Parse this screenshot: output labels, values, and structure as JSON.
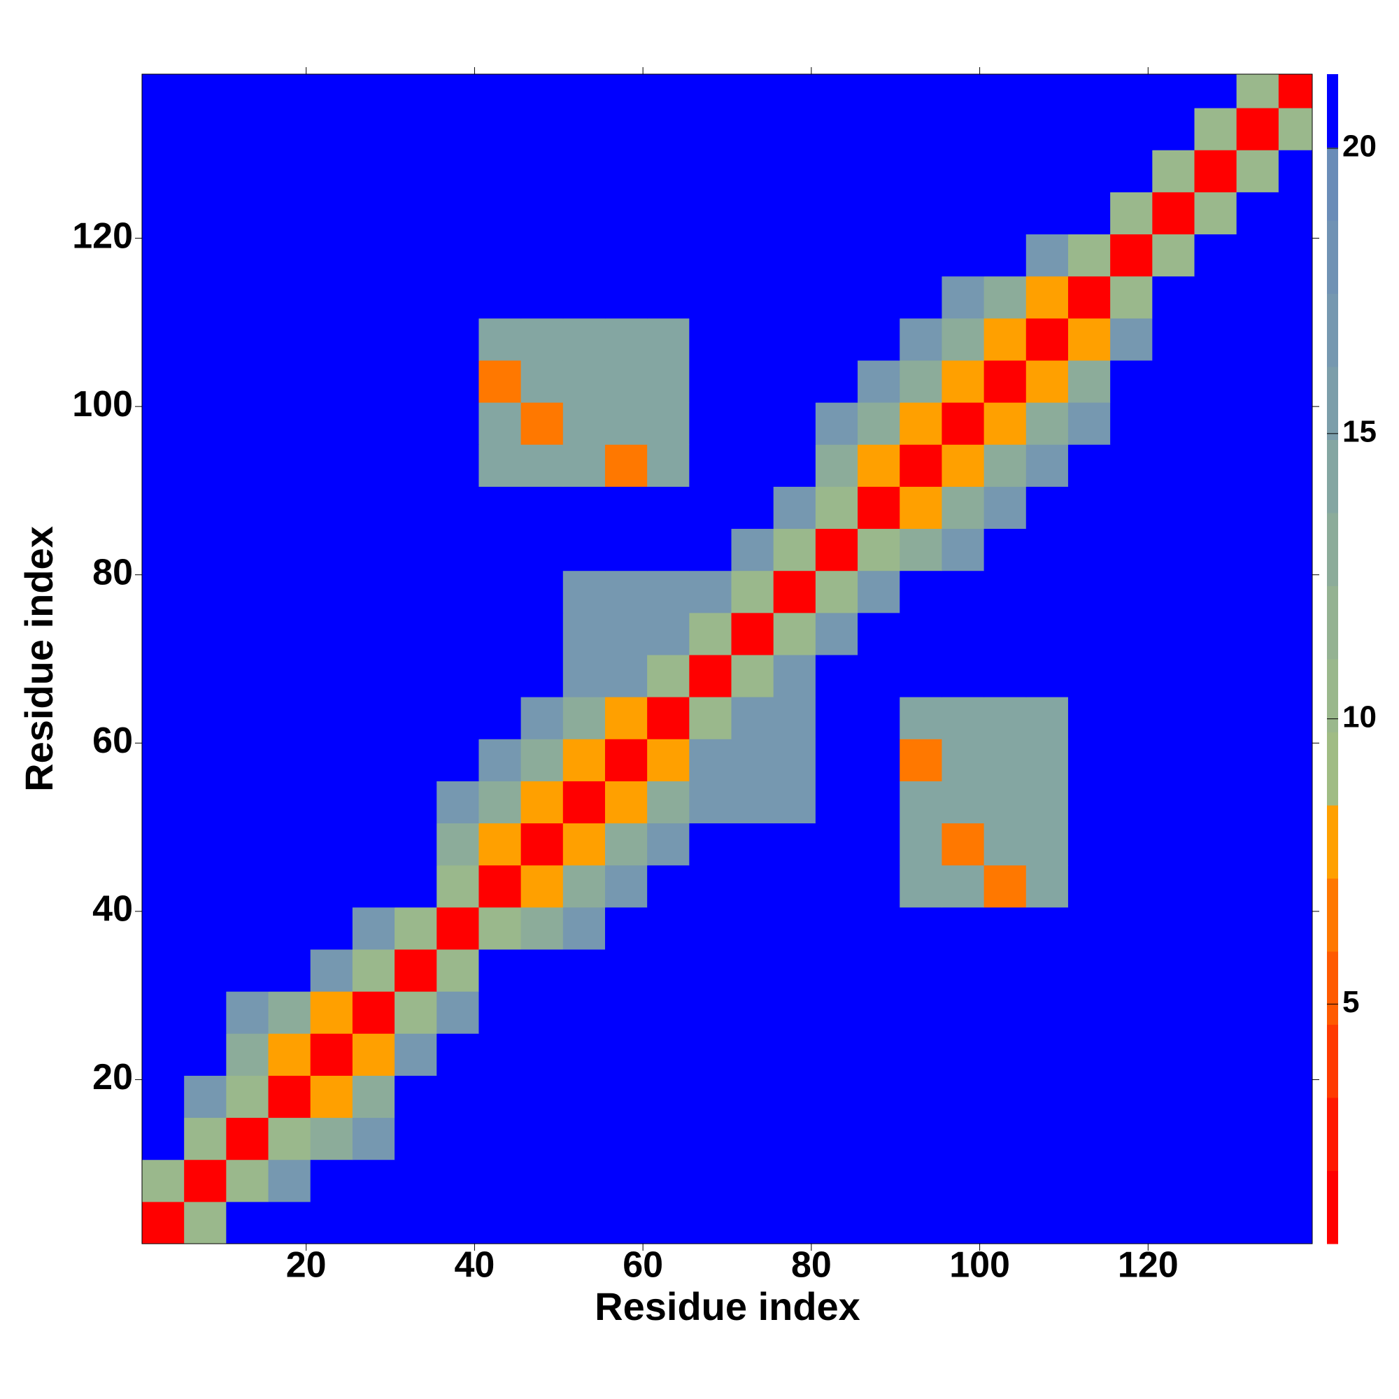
{
  "chart_data": {
    "type": "heatmap",
    "xlabel": "Residue index",
    "ylabel": "Residue index",
    "x": [
      3,
      8,
      13,
      18,
      23,
      28,
      33,
      38,
      43,
      48,
      53,
      58,
      63,
      68,
      73,
      78,
      83,
      88,
      93,
      98,
      103,
      108,
      113,
      118,
      123,
      128,
      133,
      138
    ],
    "y": [
      3,
      8,
      13,
      18,
      23,
      28,
      33,
      38,
      43,
      48,
      53,
      58,
      63,
      68,
      73,
      78,
      83,
      88,
      93,
      98,
      103,
      108,
      113,
      118,
      123,
      128,
      133,
      138
    ],
    "xlim": [
      0.5,
      139.5
    ],
    "ylim": [
      0.5,
      139.5
    ],
    "xticks": [
      20,
      40,
      60,
      80,
      100,
      120
    ],
    "yticks": [
      20,
      40,
      60,
      80,
      100,
      120
    ],
    "clim": [
      0.8,
      21.3
    ],
    "cticks": [
      5,
      10,
      15,
      20
    ],
    "colors": [
      "#ff0000",
      "#ff1800",
      "#ff3a00",
      "#ff5a00",
      "#ff7800",
      "#ffa000",
      "#a0bc84",
      "#9ab88c",
      "#94b292",
      "#8cac9a",
      "#84a6a2",
      "#7c9eaa",
      "#7698b0",
      "#7092b4",
      "#6a8cb8",
      "#0000ff"
    ],
    "z": [
      [
        2,
        11,
        21,
        21,
        21,
        21,
        21,
        21,
        21,
        21,
        21,
        21,
        21,
        21,
        21,
        21,
        21,
        21,
        21,
        21,
        21,
        21,
        21,
        21,
        21,
        21,
        21,
        21
      ],
      [
        11,
        2,
        11,
        17,
        21,
        21,
        21,
        21,
        21,
        21,
        21,
        21,
        21,
        21,
        21,
        21,
        21,
        21,
        21,
        21,
        21,
        21,
        21,
        21,
        21,
        21,
        21,
        21
      ],
      [
        21,
        11,
        2,
        11,
        13,
        17,
        21,
        21,
        21,
        21,
        21,
        21,
        21,
        21,
        21,
        21,
        21,
        21,
        21,
        21,
        21,
        21,
        21,
        21,
        21,
        21,
        21,
        21
      ],
      [
        21,
        17,
        11,
        2,
        8,
        13,
        21,
        21,
        21,
        21,
        21,
        21,
        21,
        21,
        21,
        21,
        21,
        21,
        21,
        21,
        21,
        21,
        21,
        21,
        21,
        21,
        21,
        21
      ],
      [
        21,
        21,
        13,
        8,
        2,
        8,
        17,
        21,
        21,
        21,
        21,
        21,
        21,
        21,
        21,
        21,
        21,
        21,
        21,
        21,
        21,
        21,
        21,
        21,
        21,
        21,
        21,
        21
      ],
      [
        21,
        21,
        17,
        13,
        8,
        2,
        11,
        17,
        21,
        21,
        21,
        21,
        21,
        21,
        21,
        21,
        21,
        21,
        21,
        21,
        21,
        21,
        21,
        21,
        21,
        21,
        21,
        21
      ],
      [
        21,
        21,
        21,
        21,
        17,
        11,
        2,
        11,
        21,
        21,
        21,
        21,
        21,
        21,
        21,
        21,
        21,
        21,
        21,
        21,
        21,
        21,
        21,
        21,
        21,
        21,
        21,
        21
      ],
      [
        21,
        21,
        21,
        21,
        21,
        17,
        11,
        2,
        11,
        13,
        17,
        21,
        21,
        21,
        21,
        21,
        21,
        21,
        21,
        21,
        21,
        21,
        21,
        21,
        21,
        21,
        21,
        21
      ],
      [
        21,
        21,
        21,
        21,
        21,
        21,
        21,
        11,
        2,
        8,
        13,
        17,
        21,
        21,
        21,
        21,
        21,
        21,
        14,
        14,
        7,
        14,
        21,
        21,
        21,
        21,
        21,
        21
      ],
      [
        21,
        21,
        21,
        21,
        21,
        21,
        21,
        13,
        8,
        2,
        8,
        13,
        17,
        21,
        21,
        21,
        21,
        21,
        14,
        7,
        14,
        14,
        21,
        21,
        21,
        21,
        21,
        21
      ],
      [
        21,
        21,
        21,
        21,
        21,
        21,
        21,
        17,
        13,
        8,
        2,
        8,
        13,
        17,
        17,
        17,
        21,
        21,
        14,
        14,
        14,
        14,
        21,
        21,
        21,
        21,
        21,
        21
      ],
      [
        21,
        21,
        21,
        21,
        21,
        21,
        21,
        21,
        17,
        13,
        8,
        2,
        8,
        17,
        17,
        17,
        21,
        21,
        7,
        14,
        14,
        14,
        21,
        21,
        21,
        21,
        21,
        21
      ],
      [
        21,
        21,
        21,
        21,
        21,
        21,
        21,
        21,
        21,
        17,
        13,
        8,
        2,
        11,
        17,
        17,
        21,
        21,
        14,
        14,
        14,
        14,
        21,
        21,
        21,
        21,
        21,
        21
      ],
      [
        21,
        21,
        21,
        21,
        21,
        21,
        21,
        21,
        21,
        21,
        17,
        17,
        11,
        2,
        11,
        17,
        21,
        21,
        21,
        21,
        21,
        21,
        21,
        21,
        21,
        21,
        21,
        21
      ],
      [
        21,
        21,
        21,
        21,
        21,
        21,
        21,
        21,
        21,
        21,
        17,
        17,
        17,
        11,
        2,
        11,
        17,
        21,
        21,
        21,
        21,
        21,
        21,
        21,
        21,
        21,
        21,
        21
      ],
      [
        21,
        21,
        21,
        21,
        21,
        21,
        21,
        21,
        21,
        21,
        17,
        17,
        17,
        17,
        11,
        2,
        11,
        17,
        21,
        21,
        21,
        21,
        21,
        21,
        21,
        21,
        21,
        21
      ],
      [
        21,
        21,
        21,
        21,
        21,
        21,
        21,
        21,
        21,
        21,
        21,
        21,
        21,
        21,
        17,
        11,
        2,
        11,
        13,
        17,
        21,
        21,
        21,
        21,
        21,
        21,
        21,
        21
      ],
      [
        21,
        21,
        21,
        21,
        21,
        21,
        21,
        21,
        21,
        21,
        21,
        21,
        21,
        21,
        21,
        17,
        11,
        2,
        8,
        13,
        17,
        21,
        21,
        21,
        21,
        21,
        21,
        21
      ],
      [
        21,
        21,
        21,
        21,
        21,
        21,
        21,
        21,
        14,
        14,
        14,
        7,
        14,
        21,
        21,
        21,
        13,
        8,
        2,
        8,
        13,
        17,
        21,
        21,
        21,
        21,
        21,
        21
      ],
      [
        21,
        21,
        21,
        21,
        21,
        21,
        21,
        21,
        14,
        7,
        14,
        14,
        14,
        21,
        21,
        21,
        17,
        13,
        8,
        2,
        8,
        13,
        17,
        21,
        21,
        21,
        21,
        21
      ],
      [
        21,
        21,
        21,
        21,
        21,
        21,
        21,
        21,
        7,
        14,
        14,
        14,
        14,
        21,
        21,
        21,
        21,
        17,
        13,
        8,
        2,
        8,
        13,
        21,
        21,
        21,
        21,
        21
      ],
      [
        21,
        21,
        21,
        21,
        21,
        21,
        21,
        21,
        14,
        14,
        14,
        14,
        14,
        21,
        21,
        21,
        21,
        21,
        17,
        13,
        8,
        2,
        8,
        17,
        21,
        21,
        21,
        21
      ],
      [
        21,
        21,
        21,
        21,
        21,
        21,
        21,
        21,
        21,
        21,
        21,
        21,
        21,
        21,
        21,
        21,
        21,
        21,
        21,
        17,
        13,
        8,
        2,
        11,
        21,
        21,
        21,
        21
      ],
      [
        21,
        21,
        21,
        21,
        21,
        21,
        21,
        21,
        21,
        21,
        21,
        21,
        21,
        21,
        21,
        21,
        21,
        21,
        21,
        21,
        21,
        17,
        11,
        2,
        11,
        21,
        21,
        21
      ],
      [
        21,
        21,
        21,
        21,
        21,
        21,
        21,
        21,
        21,
        21,
        21,
        21,
        21,
        21,
        21,
        21,
        21,
        21,
        21,
        21,
        21,
        21,
        21,
        11,
        2,
        11,
        21,
        21
      ],
      [
        21,
        21,
        21,
        21,
        21,
        21,
        21,
        21,
        21,
        21,
        21,
        21,
        21,
        21,
        21,
        21,
        21,
        21,
        21,
        21,
        21,
        21,
        21,
        21,
        11,
        2,
        11,
        21
      ],
      [
        21,
        21,
        21,
        21,
        21,
        21,
        21,
        21,
        21,
        21,
        21,
        21,
        21,
        21,
        21,
        21,
        21,
        21,
        21,
        21,
        21,
        21,
        21,
        21,
        21,
        11,
        2,
        11
      ],
      [
        21,
        21,
        21,
        21,
        21,
        21,
        21,
        21,
        21,
        21,
        21,
        21,
        21,
        21,
        21,
        21,
        21,
        21,
        21,
        21,
        21,
        21,
        21,
        21,
        21,
        21,
        11,
        2
      ]
    ]
  }
}
